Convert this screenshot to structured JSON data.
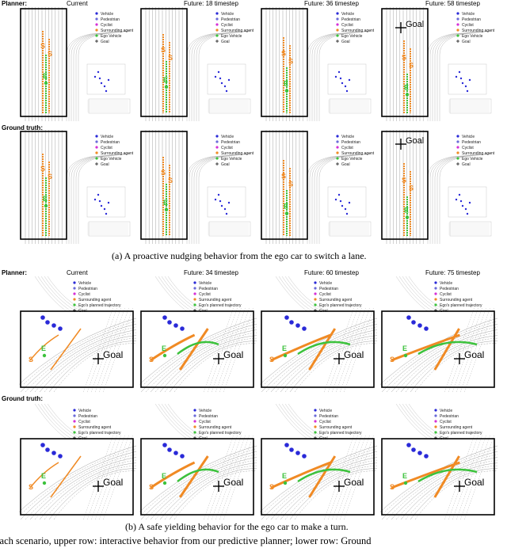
{
  "figure_a": {
    "row_labels": {
      "planner": "Planner:",
      "ground_truth": "Ground truth:"
    },
    "planner_titles": [
      "Current",
      "Future: 18 timestep",
      "Future: 36 timestep",
      "Future: 58 timestep"
    ],
    "legend": [
      "Vehicle",
      "Pedestrian",
      "Cyclist",
      "Surrounding agent",
      "Ego Vehicle",
      "Goal"
    ],
    "caption": "(a) A proactive nudging behavior from the ego car to switch a lane."
  },
  "figure_b": {
    "row_labels": {
      "planner": "Planner:",
      "ground_truth": "Ground truth:"
    },
    "planner_titles": [
      "Current",
      "Future: 34 timestep",
      "Future: 60 timestep",
      "Future: 75 timestep"
    ],
    "legend": [
      "Vehicle",
      "Pedestrian",
      "Cyclist",
      "Surrounding agent",
      "Ego's planned trajectory",
      "Goal"
    ],
    "caption": "(b) A safe yielding behavior for the ego car to make a turn."
  },
  "markers": {
    "goal": "Goal",
    "surrounding": "S",
    "ego": "E"
  },
  "footer_text": "each scenario, upper row: interactive behavior from our predictive planner; lower row: Ground",
  "colors": {
    "vehicle": "#2a2ad8",
    "pedestrian": "#6b6bd8",
    "cyclist": "#d630d6",
    "surrounding": "#f08a24",
    "ego": "#3cc23c"
  }
}
